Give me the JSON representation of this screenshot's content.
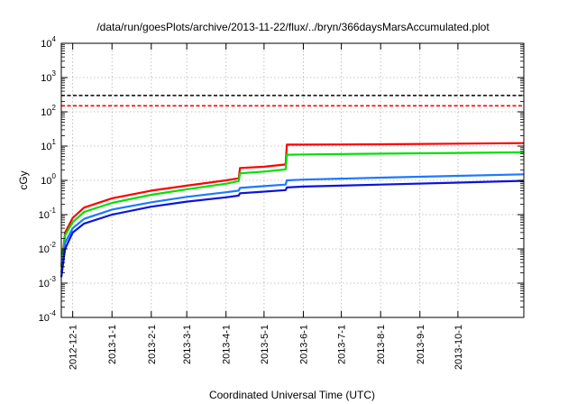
{
  "chart_data": {
    "type": "line",
    "title": "/data/run/goesPlots/archive/2013-11-22/flux/../bryn/366daysMarsAccumulated.plot",
    "xlabel": "Coordinated Universal Time (UTC)",
    "ylabel": "cGy",
    "yscale": "log",
    "ylim": [
      0.0001,
      10000
    ],
    "xlim": [
      "2012-11-22",
      "2013-11-22"
    ],
    "grid": true,
    "y_ticks": [
      {
        "base": "10",
        "exp": "-4",
        "value": 0.0001
      },
      {
        "base": "10",
        "exp": "-3",
        "value": 0.001
      },
      {
        "base": "10",
        "exp": "-2",
        "value": 0.01
      },
      {
        "base": "10",
        "exp": "-1",
        "value": 0.1
      },
      {
        "base": "10",
        "exp": "0",
        "value": 1
      },
      {
        "base": "10",
        "exp": "1",
        "value": 10
      },
      {
        "base": "10",
        "exp": "2",
        "value": 100
      },
      {
        "base": "10",
        "exp": "3",
        "value": 1000
      },
      {
        "base": "10",
        "exp": "4",
        "value": 10000
      }
    ],
    "x_ticks": [
      "2012-12-1",
      "2013-1-1",
      "2013-2-1",
      "2013-3-1",
      "2013-4-1",
      "2013-5-1",
      "2013-6-1",
      "2013-7-1",
      "2013-8-1",
      "2013-9-1",
      "2013-10-1"
    ],
    "reference_lines": [
      {
        "y": 300,
        "color": "#000000",
        "style": "dashed"
      },
      {
        "y": 150,
        "color": "#ff0000",
        "style": "dashed"
      }
    ],
    "series": [
      {
        "color": "#ff0000",
        "points": [
          [
            "2012-11-22",
            0.003
          ],
          [
            "2012-11-25",
            0.03
          ],
          [
            "2012-12-01",
            0.08
          ],
          [
            "2012-12-10",
            0.16
          ],
          [
            "2013-01-01",
            0.3
          ],
          [
            "2013-02-01",
            0.5
          ],
          [
            "2013-03-01",
            0.7
          ],
          [
            "2013-04-01",
            1.0
          ],
          [
            "2013-04-11",
            1.15
          ],
          [
            "2013-04-12",
            2.3
          ],
          [
            "2013-05-01",
            2.5
          ],
          [
            "2013-05-18",
            2.9
          ],
          [
            "2013-05-19",
            11.0
          ],
          [
            "2013-06-01",
            11.0
          ],
          [
            "2013-08-01",
            11.3
          ],
          [
            "2013-10-01",
            11.8
          ],
          [
            "2013-11-22",
            12.2
          ]
        ]
      },
      {
        "color": "#00e000",
        "points": [
          [
            "2012-11-22",
            0.003
          ],
          [
            "2012-11-25",
            0.025
          ],
          [
            "2012-12-01",
            0.06
          ],
          [
            "2012-12-10",
            0.12
          ],
          [
            "2013-01-01",
            0.22
          ],
          [
            "2013-02-01",
            0.38
          ],
          [
            "2013-03-01",
            0.55
          ],
          [
            "2013-04-01",
            0.8
          ],
          [
            "2013-04-11",
            0.95
          ],
          [
            "2013-04-12",
            1.6
          ],
          [
            "2013-05-01",
            1.8
          ],
          [
            "2013-05-18",
            2.1
          ],
          [
            "2013-05-19",
            5.6
          ],
          [
            "2013-06-01",
            5.7
          ],
          [
            "2013-08-01",
            6.0
          ],
          [
            "2013-10-01",
            6.3
          ],
          [
            "2013-11-22",
            6.6
          ]
        ]
      },
      {
        "color": "#1e78ff",
        "points": [
          [
            "2012-11-22",
            0.002
          ],
          [
            "2012-11-25",
            0.015
          ],
          [
            "2012-12-01",
            0.04
          ],
          [
            "2012-12-10",
            0.075
          ],
          [
            "2013-01-01",
            0.14
          ],
          [
            "2013-02-01",
            0.23
          ],
          [
            "2013-03-01",
            0.33
          ],
          [
            "2013-04-01",
            0.45
          ],
          [
            "2013-04-11",
            0.5
          ],
          [
            "2013-04-12",
            0.6
          ],
          [
            "2013-05-01",
            0.68
          ],
          [
            "2013-05-18",
            0.75
          ],
          [
            "2013-05-19",
            1.0
          ],
          [
            "2013-06-01",
            1.05
          ],
          [
            "2013-08-01",
            1.2
          ],
          [
            "2013-10-01",
            1.35
          ],
          [
            "2013-11-22",
            1.5
          ]
        ]
      },
      {
        "color": "#0a14dc",
        "points": [
          [
            "2012-11-22",
            0.0015
          ],
          [
            "2012-11-25",
            0.01
          ],
          [
            "2012-12-01",
            0.03
          ],
          [
            "2012-12-10",
            0.055
          ],
          [
            "2013-01-01",
            0.1
          ],
          [
            "2013-02-01",
            0.17
          ],
          [
            "2013-03-01",
            0.24
          ],
          [
            "2013-04-01",
            0.32
          ],
          [
            "2013-04-11",
            0.36
          ],
          [
            "2013-04-12",
            0.42
          ],
          [
            "2013-05-01",
            0.47
          ],
          [
            "2013-05-18",
            0.52
          ],
          [
            "2013-05-19",
            0.62
          ],
          [
            "2013-06-01",
            0.66
          ],
          [
            "2013-08-01",
            0.75
          ],
          [
            "2013-10-01",
            0.86
          ],
          [
            "2013-11-22",
            0.97
          ]
        ]
      }
    ]
  }
}
